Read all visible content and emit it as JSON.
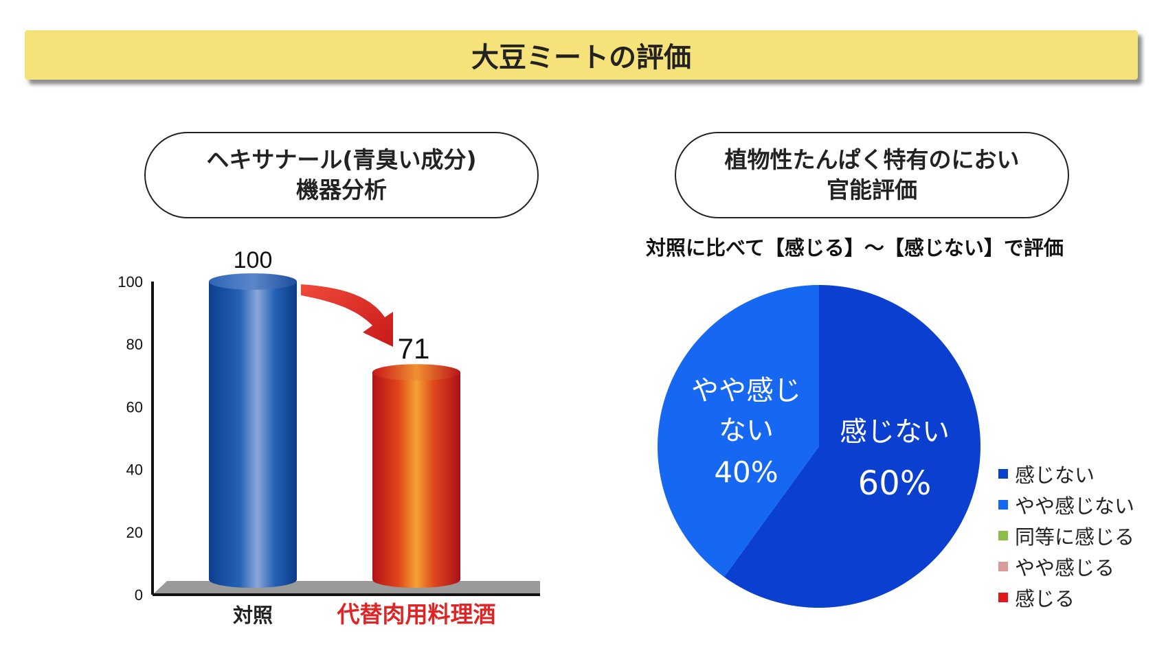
{
  "title": "大豆ミートの評価",
  "left_panel": {
    "heading_line1": "ヘキサナール(青臭い成分)",
    "heading_line2": "機器分析"
  },
  "right_panel": {
    "heading_line1": "植物性たんぱく特有のにおい",
    "heading_line2": "官能評価",
    "instruction": "対照に比べて【感じる】～【感じない】で評価"
  },
  "chart_data": [
    {
      "type": "bar",
      "categories": [
        "対照",
        "代替肉用料理酒"
      ],
      "values": [
        100,
        71
      ],
      "value_labels": [
        "100",
        "71"
      ],
      "ylim": [
        0,
        100
      ],
      "yticks": [
        "0",
        "20",
        "40",
        "60",
        "80",
        "100"
      ],
      "colors": [
        "#1553a6",
        "#d42020"
      ],
      "category_label_colors": [
        "#222222",
        "#e02424"
      ]
    },
    {
      "type": "pie",
      "slices": [
        {
          "label_line1": "感じない",
          "label_line2": "",
          "percent_label": "60%",
          "value": 60,
          "color": "#0a3fd0"
        },
        {
          "label_line1": "やや感じ",
          "label_line2": "ない",
          "percent_label": "40%",
          "value": 40,
          "color": "#1668f2"
        }
      ],
      "legend": [
        {
          "label": "感じない",
          "color": "#0a3fd0"
        },
        {
          "label": "やや感じない",
          "color": "#1668f2"
        },
        {
          "label": "同等に感じる",
          "color": "#8fbd4a"
        },
        {
          "label": "やや感じる",
          "color": "#d99a9a"
        },
        {
          "label": "感じる",
          "color": "#e01818"
        }
      ],
      "legend_position": "right"
    }
  ]
}
